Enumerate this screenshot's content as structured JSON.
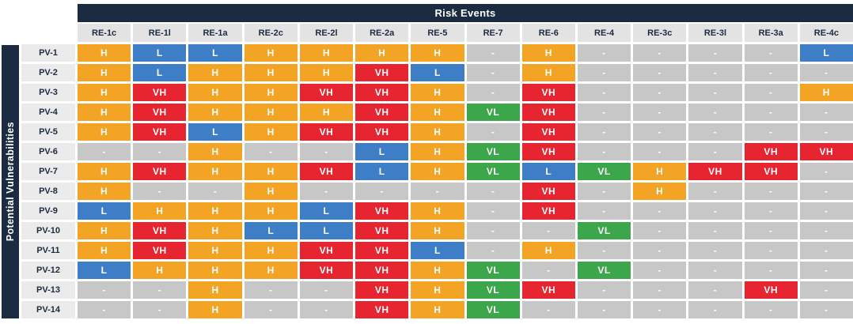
{
  "chart_data": {
    "type": "heatmap",
    "title": "Risk Events",
    "row_axis_label": "Potential Vulnerabilities",
    "columns": [
      "RE-1c",
      "RE-1l",
      "RE-1a",
      "RE-2c",
      "RE-2l",
      "RE-2a",
      "RE-5",
      "RE-7",
      "RE-6",
      "RE-4",
      "RE-3c",
      "RE-3l",
      "RE-3a",
      "RE-4c"
    ],
    "row_labels": [
      "PV-1",
      "PV-2",
      "PV-3",
      "PV-4",
      "PV-5",
      "PV-6",
      "PV-7",
      "PV-8",
      "PV-9",
      "PV-10",
      "PV-11",
      "PV-12",
      "PV-13",
      "PV-14"
    ],
    "cells": [
      [
        "H",
        "L",
        "L",
        "H",
        "H",
        "H",
        "H",
        "-",
        "H",
        "-",
        "-",
        "-",
        "-",
        "L"
      ],
      [
        "H",
        "L",
        "H",
        "H",
        "H",
        "VH",
        "L",
        "-",
        "H",
        "-",
        "-",
        "-",
        "-",
        "-"
      ],
      [
        "H",
        "VH",
        "H",
        "H",
        "VH",
        "VH",
        "H",
        "-",
        "VH",
        "-",
        "-",
        "-",
        "-",
        "H"
      ],
      [
        "H",
        "VH",
        "H",
        "H",
        "H",
        "VH",
        "H",
        "VL",
        "VH",
        "-",
        "-",
        "-",
        "-",
        "-"
      ],
      [
        "H",
        "VH",
        "L",
        "H",
        "VH",
        "VH",
        "H",
        "-",
        "VH",
        "-",
        "-",
        "-",
        "-",
        "-"
      ],
      [
        "-",
        "-",
        "H",
        "-",
        "-",
        "L",
        "H",
        "VL",
        "VH",
        "-",
        "-",
        "-",
        "VH",
        "VH"
      ],
      [
        "H",
        "VH",
        "H",
        "H",
        "VH",
        "L",
        "H",
        "VL",
        "L",
        "VL",
        "H",
        "VH",
        "VH",
        "-"
      ],
      [
        "H",
        "-",
        "-",
        "H",
        "-",
        "-",
        "-",
        "-",
        "VH",
        "-",
        "H",
        "-",
        "-",
        "-"
      ],
      [
        "L",
        "H",
        "H",
        "H",
        "L",
        "VH",
        "H",
        "-",
        "VH",
        "-",
        "-",
        "-",
        "-",
        "-"
      ],
      [
        "H",
        "VH",
        "H",
        "L",
        "L",
        "VH",
        "H",
        "-",
        "-",
        "VL",
        "-",
        "-",
        "-",
        "-"
      ],
      [
        "H",
        "VH",
        "H",
        "H",
        "VH",
        "VH",
        "L",
        "-",
        "H",
        "-",
        "-",
        "-",
        "-",
        "-"
      ],
      [
        "L",
        "H",
        "H",
        "H",
        "VH",
        "VH",
        "H",
        "VL",
        "-",
        "VL",
        "-",
        "-",
        "-",
        "-"
      ],
      [
        "-",
        "-",
        "H",
        "-",
        "-",
        "VH",
        "H",
        "VL",
        "VH",
        "-",
        "-",
        "-",
        "VH",
        "-"
      ],
      [
        "-",
        "-",
        "H",
        "-",
        "-",
        "VH",
        "H",
        "VL",
        "-",
        "-",
        "-",
        "-",
        "-",
        "-"
      ]
    ],
    "value_colors": {
      "VH": "#E62530",
      "H": "#F4A425",
      "L": "#3E7EC7",
      "VL": "#3CA64B",
      "-": "#C7C7C7"
    },
    "layout": {
      "header_bar_color": "#1B2B42",
      "col_header_bg": "#E3E3E3",
      "row_label_bg": "#EBEBEB",
      "legend_position": "none",
      "grid": "white-gaps"
    }
  }
}
